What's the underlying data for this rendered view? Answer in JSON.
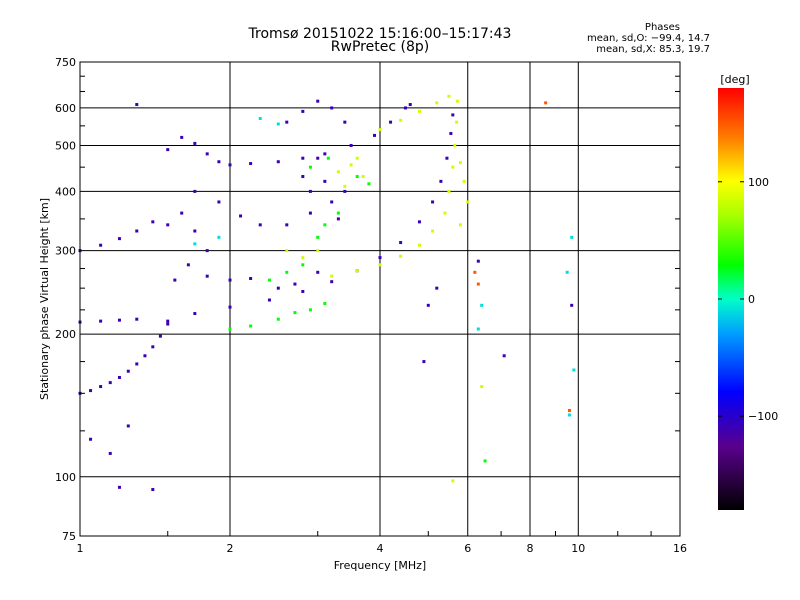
{
  "chart_data": {
    "type": "scatter",
    "title": "Tromsø 20151022 15:16:00–15:17:43",
    "subtitle": "RwPretec (8p)",
    "xlabel": "Frequency [MHz]",
    "ylabel": "Stationary phase Virtual Height [km]",
    "x_scale": "log2",
    "y_scale": "log",
    "xlim": [
      1,
      16
    ],
    "ylim": [
      75,
      750
    ],
    "x_ticks": [
      1,
      2,
      4,
      6,
      8,
      10,
      16
    ],
    "x_tick_labels": [
      "1",
      "2",
      "4",
      "6",
      "8",
      "10",
      "16"
    ],
    "y_ticks": [
      75,
      100,
      200,
      300,
      400,
      500,
      600,
      750
    ],
    "y_tick_labels": [
      "75",
      "100",
      "200",
      "300",
      "400",
      "500",
      "600",
      "750"
    ],
    "grid": true,
    "stats": {
      "heading": "Phases",
      "o_mode": "mean, sd,O: −99.4, 14.7",
      "x_mode": "mean, sd,X: 85.3, 19.7"
    },
    "colorbar": {
      "label": "[deg]",
      "range": [
        -180,
        180
      ],
      "ticks": [
        100,
        0,
        -100
      ],
      "tick_labels": [
        "100",
        "0",
        "−100"
      ]
    },
    "series": [
      {
        "mode": "O",
        "phase_deg": -110,
        "points": [
          [
            1.0,
            150
          ],
          [
            1.05,
            152
          ],
          [
            1.1,
            155
          ],
          [
            1.15,
            158
          ],
          [
            1.2,
            162
          ],
          [
            1.25,
            167
          ],
          [
            1.3,
            173
          ],
          [
            1.35,
            180
          ],
          [
            1.4,
            188
          ],
          [
            1.45,
            198
          ],
          [
            1.5,
            210
          ],
          [
            1.5,
            213
          ],
          [
            1.7,
            221
          ],
          [
            2.0,
            228
          ],
          [
            2.4,
            236
          ],
          [
            2.8,
            246
          ],
          [
            3.2,
            258
          ],
          [
            3.6,
            272
          ],
          [
            4.0,
            290
          ],
          [
            4.4,
            312
          ],
          [
            4.8,
            345
          ],
          [
            5.1,
            380
          ],
          [
            5.3,
            420
          ],
          [
            5.45,
            470
          ],
          [
            5.55,
            530
          ],
          [
            5.6,
            580
          ],
          [
            1.0,
            212
          ],
          [
            1.1,
            213
          ],
          [
            1.2,
            214
          ],
          [
            1.3,
            215
          ],
          [
            1.0,
            300
          ],
          [
            1.1,
            308
          ],
          [
            1.2,
            318
          ],
          [
            1.3,
            330
          ],
          [
            1.4,
            345
          ],
          [
            1.5,
            490
          ],
          [
            1.6,
            520
          ],
          [
            1.7,
            505
          ],
          [
            1.8,
            480
          ],
          [
            1.9,
            462
          ],
          [
            2.0,
            455
          ],
          [
            2.2,
            458
          ],
          [
            2.5,
            462
          ],
          [
            2.8,
            470
          ],
          [
            3.1,
            480
          ],
          [
            3.5,
            500
          ],
          [
            3.9,
            525
          ],
          [
            4.2,
            560
          ],
          [
            4.5,
            600
          ],
          [
            4.6,
            610
          ],
          [
            1.7,
            400
          ],
          [
            1.9,
            380
          ],
          [
            2.1,
            355
          ],
          [
            2.3,
            340
          ],
          [
            2.6,
            340
          ],
          [
            2.9,
            360
          ],
          [
            1.5,
            340
          ],
          [
            1.6,
            360
          ],
          [
            1.7,
            330
          ],
          [
            1.8,
            300
          ],
          [
            1.65,
            280
          ],
          [
            1.55,
            260
          ],
          [
            2.5,
            250
          ],
          [
            2.7,
            255
          ],
          [
            3.0,
            270
          ],
          [
            2.2,
            262
          ],
          [
            2.0,
            260
          ],
          [
            1.8,
            265
          ],
          [
            2.6,
            560
          ],
          [
            2.8,
            590
          ],
          [
            3.0,
            620
          ],
          [
            3.2,
            600
          ],
          [
            3.4,
            560
          ],
          [
            3.0,
            470
          ],
          [
            2.8,
            430
          ],
          [
            3.1,
            420
          ],
          [
            3.4,
            400
          ],
          [
            3.2,
            380
          ],
          [
            2.9,
            400
          ],
          [
            3.3,
            350
          ],
          [
            1.05,
            120
          ],
          [
            1.15,
            112
          ],
          [
            1.2,
            95
          ],
          [
            1.4,
            94
          ],
          [
            1.25,
            128
          ],
          [
            1.3,
            610
          ],
          [
            5.2,
            250
          ],
          [
            5.0,
            230
          ],
          [
            4.9,
            175
          ],
          [
            7.1,
            180
          ],
          [
            6.3,
            285
          ],
          [
            9.7,
            230
          ]
        ]
      },
      {
        "mode": "X",
        "phase_deg": 85,
        "points": [
          [
            3.2,
            265
          ],
          [
            3.6,
            272
          ],
          [
            4.0,
            280
          ],
          [
            4.4,
            292
          ],
          [
            4.8,
            308
          ],
          [
            5.1,
            330
          ],
          [
            5.4,
            360
          ],
          [
            5.5,
            400
          ],
          [
            5.6,
            450
          ],
          [
            5.65,
            500
          ],
          [
            5.7,
            560
          ],
          [
            5.72,
            620
          ],
          [
            4.0,
            540
          ],
          [
            4.4,
            565
          ],
          [
            4.8,
            590
          ],
          [
            5.2,
            615
          ],
          [
            5.5,
            635
          ],
          [
            3.3,
            440
          ],
          [
            3.5,
            455
          ],
          [
            3.7,
            430
          ],
          [
            3.6,
            470
          ],
          [
            3.4,
            410
          ],
          [
            2.8,
            290
          ],
          [
            3.0,
            300
          ],
          [
            2.6,
            300
          ],
          [
            5.8,
            460
          ],
          [
            5.9,
            420
          ],
          [
            6.0,
            380
          ],
          [
            5.8,
            340
          ],
          [
            5.6,
            98
          ],
          [
            6.4,
            155
          ]
        ]
      },
      {
        "mode": "other",
        "phase_deg": 30,
        "points": [
          [
            2.0,
            205
          ],
          [
            2.2,
            208
          ],
          [
            2.5,
            215
          ],
          [
            2.7,
            222
          ],
          [
            2.9,
            225
          ],
          [
            3.1,
            232
          ],
          [
            2.4,
            260
          ],
          [
            2.6,
            270
          ],
          [
            2.8,
            280
          ],
          [
            3.0,
            320
          ],
          [
            3.1,
            340
          ],
          [
            3.3,
            360
          ],
          [
            3.6,
            430
          ],
          [
            3.8,
            415
          ],
          [
            2.9,
            450
          ],
          [
            3.15,
            470
          ],
          [
            6.5,
            108
          ]
        ]
      },
      {
        "mode": "other",
        "phase_deg": -10,
        "points": [
          [
            1.7,
            310
          ],
          [
            1.9,
            320
          ],
          [
            2.3,
            570
          ],
          [
            2.5,
            555
          ],
          [
            6.3,
            205
          ],
          [
            6.4,
            230
          ],
          [
            9.7,
            320
          ],
          [
            9.6,
            135
          ],
          [
            9.5,
            270
          ],
          [
            9.8,
            168
          ]
        ]
      },
      {
        "mode": "other",
        "phase_deg": 150,
        "points": [
          [
            8.6,
            615
          ],
          [
            6.3,
            255
          ],
          [
            9.6,
            138
          ],
          [
            6.2,
            270
          ]
        ]
      }
    ]
  }
}
